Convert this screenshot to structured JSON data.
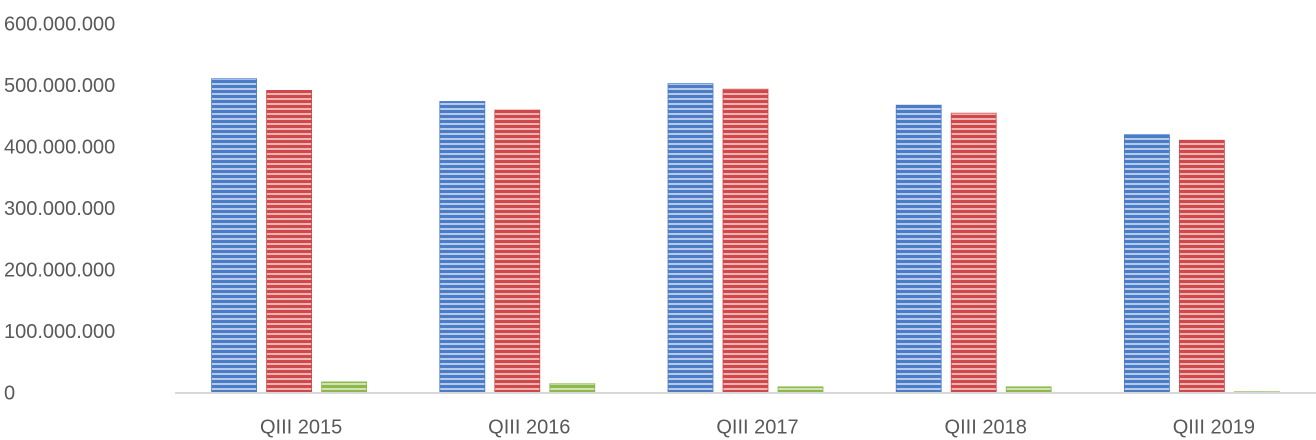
{
  "chart_data": {
    "type": "bar",
    "categories": [
      "QIII 2015",
      "QIII 2016",
      "QIII 2017",
      "QIII 2018",
      "QIII 2019"
    ],
    "series": [
      {
        "color": "#4a7cc7",
        "values": [
          511000000,
          474000000,
          503000000,
          468000000,
          420000000
        ]
      },
      {
        "color": "#d0484a",
        "values": [
          492000000,
          460000000,
          494000000,
          455000000,
          411000000
        ]
      },
      {
        "color": "#8db84a",
        "values": [
          18000000,
          15000000,
          10000000,
          10000000,
          2000000
        ]
      }
    ],
    "ylim": [
      0,
      600000000
    ],
    "yticks": [
      {
        "value": 0,
        "label": "0"
      },
      {
        "value": 100000000,
        "label": "100.000.000"
      },
      {
        "value": 200000000,
        "label": "200.000.000"
      },
      {
        "value": 300000000,
        "label": "300.000.000"
      },
      {
        "value": 400000000,
        "label": "400.000.000"
      },
      {
        "value": 500000000,
        "label": "500.000.000"
      },
      {
        "value": 600000000,
        "label": "600.000.000"
      }
    ],
    "grid": false
  }
}
